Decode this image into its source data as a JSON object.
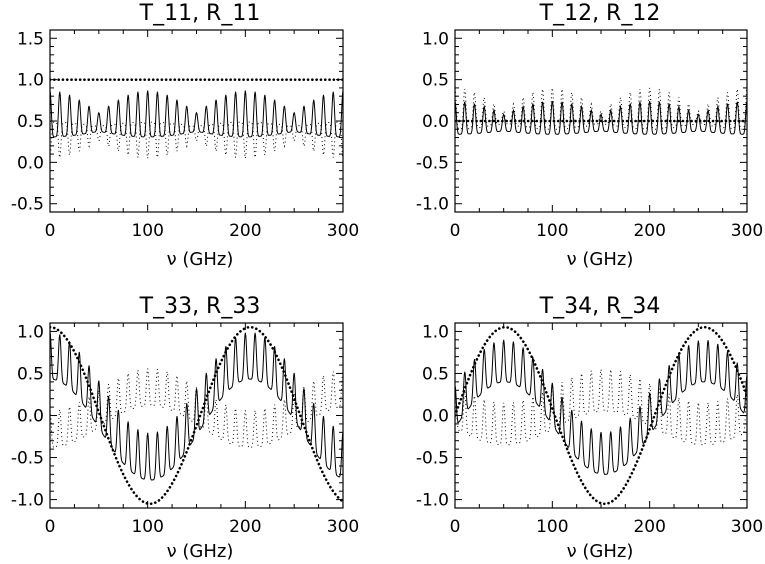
{
  "figure": {
    "panels": [
      {
        "title": "T_11, R_11",
        "xlabel": "ν (GHz)"
      },
      {
        "title": "T_12, R_12",
        "xlabel": "ν (GHz)"
      },
      {
        "title": "T_33, R_33",
        "xlabel": "ν (GHz)"
      },
      {
        "title": "T_34, R_34",
        "xlabel": "ν (GHz)"
      }
    ]
  },
  "chart_data": [
    {
      "type": "line",
      "title": "T_11, R_11",
      "xlabel": "ν (GHz)",
      "ylabel": "",
      "xlim": [
        0,
        300
      ],
      "ylim": [
        -0.6,
        1.6
      ],
      "xticks": [
        0,
        100,
        200,
        300
      ],
      "yticks": [
        -0.5,
        0.0,
        0.5,
        1.0,
        1.5
      ],
      "xtick_labels": [
        "0",
        "100",
        "200",
        "300"
      ],
      "ytick_labels": [
        "-0.5",
        "0.0",
        "0.5",
        "1.0",
        "1.5"
      ],
      "series": [
        {
          "style": "solid",
          "model": "fringe",
          "base": 0.42,
          "amp": 0.28,
          "period": 10,
          "beat": 100,
          "env_min": 0.4,
          "env_max": 1.0,
          "phase": 0
        },
        {
          "style": "dotted-fringe",
          "model": "fringe",
          "base": 0.4,
          "amp": -0.22,
          "period": 10,
          "beat": 100,
          "env_min": 0.4,
          "env_max": 1.0,
          "phase": 0
        },
        {
          "style": "dotted-heavy",
          "model": "constant",
          "value": 1.0
        }
      ]
    },
    {
      "type": "line",
      "title": "T_12, R_12",
      "xlabel": "ν (GHz)",
      "ylabel": "",
      "xlim": [
        0,
        300
      ],
      "ylim": [
        -1.1,
        1.1
      ],
      "xticks": [
        0,
        100,
        200,
        300
      ],
      "yticks": [
        -1.0,
        -0.5,
        0.0,
        0.5,
        1.0
      ],
      "xtick_labels": [
        "0",
        "100",
        "200",
        "300"
      ],
      "ytick_labels": [
        "-1.0",
        "-0.5",
        "0.0",
        "0.5",
        "1.0"
      ],
      "series": [
        {
          "style": "solid",
          "model": "fringe",
          "base": -0.08,
          "amp": 0.2,
          "period": 10,
          "beat": 100,
          "env_min": 0.5,
          "env_max": 1.0,
          "phase": 0
        },
        {
          "style": "dotted-fringe",
          "model": "fringe",
          "base": 0.0,
          "amp": 0.25,
          "period": 10,
          "beat": 100,
          "env_min": 0.3,
          "env_max": 1.0,
          "phase": 3.14
        },
        {
          "style": "dotted-heavy",
          "model": "constant",
          "value": 0.0
        }
      ]
    },
    {
      "type": "line",
      "title": "T_33, R_33",
      "xlabel": "ν (GHz)",
      "ylabel": "",
      "xlim": [
        0,
        300
      ],
      "ylim": [
        -1.1,
        1.1
      ],
      "xticks": [
        0,
        100,
        200,
        300
      ],
      "yticks": [
        -1.0,
        -0.5,
        0.0,
        0.5,
        1.0
      ],
      "xtick_labels": [
        "0",
        "100",
        "200",
        "300"
      ],
      "ytick_labels": [
        "-1.0",
        "-0.5",
        "0.0",
        "0.5",
        "1.0"
      ],
      "series": [
        {
          "style": "solid",
          "model": "sine-fringe",
          "cos_amp": 0.6,
          "cos_period": 205,
          "cos_phase": 0,
          "base": 0.1,
          "amp": 0.28,
          "period": 10
        },
        {
          "style": "dotted-fringe",
          "model": "sine-fringe",
          "cos_amp": -0.25,
          "cos_period": 205,
          "cos_phase": 0,
          "base": -0.25,
          "amp": 0.22,
          "period": 10
        },
        {
          "style": "dotted-heavy",
          "model": "cosine",
          "amp": 1.05,
          "period": 205,
          "phase": 0
        }
      ]
    },
    {
      "type": "line",
      "title": "T_34, R_34",
      "xlabel": "ν (GHz)",
      "ylabel": "",
      "xlim": [
        0,
        300
      ],
      "ylim": [
        -1.1,
        1.1
      ],
      "xticks": [
        0,
        100,
        200,
        300
      ],
      "yticks": [
        -1.0,
        -0.5,
        0.0,
        0.5,
        1.0
      ],
      "xtick_labels": [
        "0",
        "100",
        "200",
        "300"
      ],
      "ytick_labels": [
        "-1.0",
        "-0.5",
        "0.0",
        "0.5",
        "1.0"
      ],
      "series": [
        {
          "style": "solid",
          "model": "sine-fringe",
          "cos_amp": 0.55,
          "cos_period": 205,
          "cos_phase": 51,
          "base": 0.1,
          "amp": 0.25,
          "period": 10
        },
        {
          "style": "dotted-fringe",
          "model": "sine-fringe",
          "cos_amp": -0.2,
          "cos_period": 205,
          "cos_phase": 51,
          "base": -0.15,
          "amp": 0.25,
          "period": 10
        },
        {
          "style": "dotted-heavy",
          "model": "sine",
          "amp": 1.05,
          "period": 205,
          "phase": 0
        }
      ]
    }
  ]
}
